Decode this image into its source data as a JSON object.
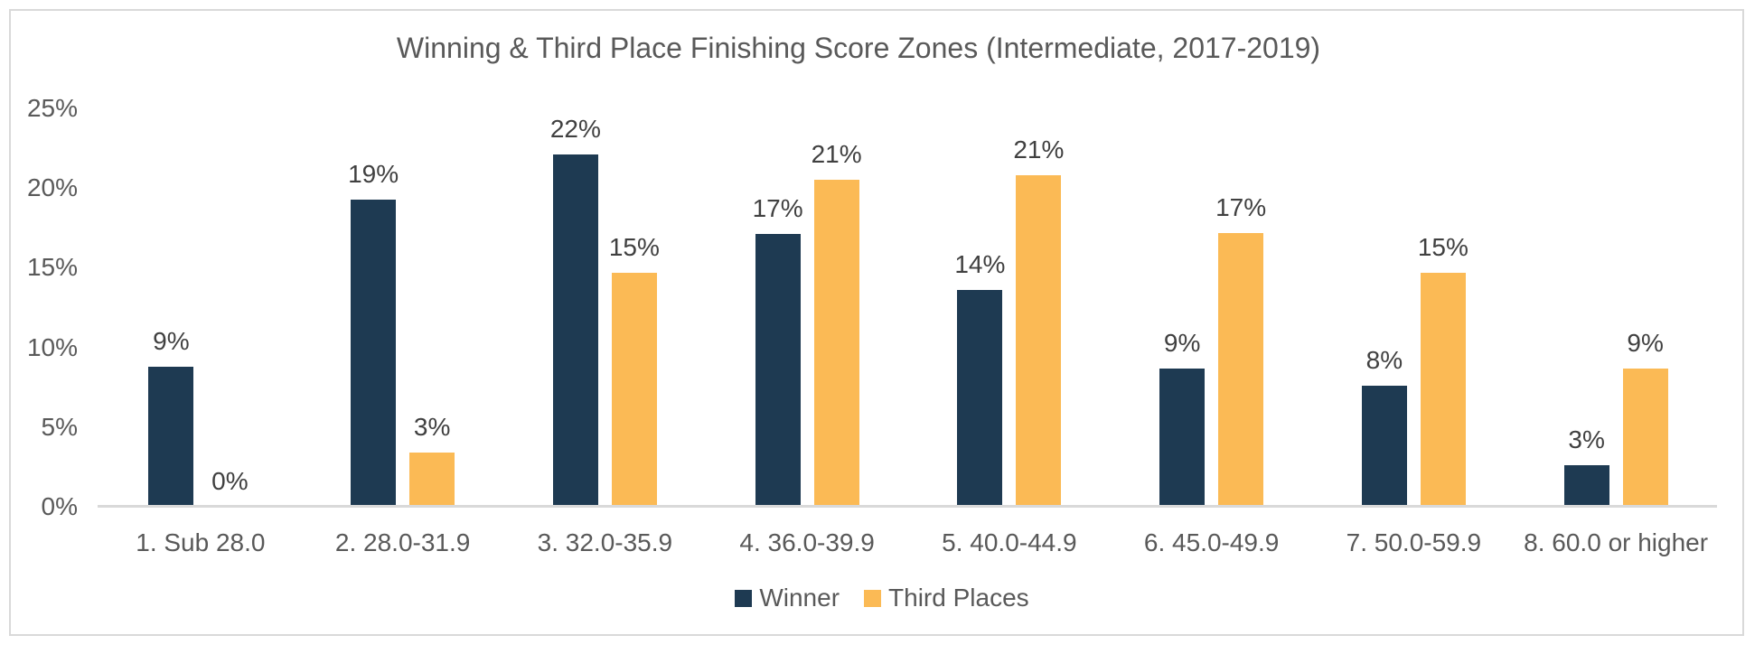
{
  "chart_data": {
    "type": "bar",
    "title": "Winning & Third Place Finishing Score Zones (Intermediate, 2017-2019)",
    "categories": [
      "1. Sub 28.0",
      "2. 28.0-31.9",
      "3. 32.0-35.9",
      "4. 36.0-39.9",
      "5. 40.0-44.9",
      "6. 45.0-49.9",
      "7. 50.0-59.9",
      "8. 60.0 or higher"
    ],
    "series": [
      {
        "name": "Winner",
        "color": "#1e3a52",
        "values": [
          8.8,
          19.3,
          22.1,
          17.1,
          13.6,
          8.7,
          7.6,
          2.6
        ],
        "labels": [
          "9%",
          "19%",
          "22%",
          "17%",
          "14%",
          "9%",
          "8%",
          "3%"
        ]
      },
      {
        "name": "Third Places",
        "color": "#fbba55",
        "values": [
          0,
          3.4,
          14.7,
          20.5,
          20.8,
          17.2,
          14.7,
          8.7
        ],
        "labels": [
          "0%",
          "3%",
          "15%",
          "21%",
          "21%",
          "17%",
          "15%",
          "9%"
        ]
      }
    ],
    "y_axis": {
      "min": 0,
      "max": 25,
      "tick_step": 5,
      "tick_values": [
        0,
        5,
        10,
        15,
        20,
        25
      ],
      "tick_labels": [
        "0%",
        "5%",
        "10%",
        "15%",
        "20%",
        "25%"
      ]
    },
    "legend": {
      "position": "bottom",
      "entries": [
        "Winner",
        "Third Places"
      ]
    },
    "gridlines": false,
    "colors": {
      "axis_line": "#d9d9d9",
      "frame_border": "#d9d9d9",
      "title_text": "#595959",
      "axis_text": "#595959",
      "data_label_text": "#404040"
    }
  }
}
